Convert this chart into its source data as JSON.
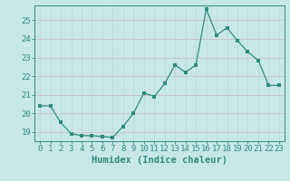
{
  "x": [
    0,
    1,
    2,
    3,
    4,
    5,
    6,
    7,
    8,
    9,
    10,
    11,
    12,
    13,
    14,
    15,
    16,
    17,
    18,
    19,
    20,
    21,
    22,
    23
  ],
  "y": [
    20.4,
    20.4,
    19.5,
    18.9,
    18.8,
    18.8,
    18.75,
    18.7,
    19.3,
    20.0,
    21.1,
    20.9,
    21.6,
    22.6,
    22.2,
    22.6,
    25.6,
    24.2,
    24.6,
    23.9,
    23.3,
    22.85,
    21.5,
    21.5
  ],
  "line_color": "#2e8b7a",
  "marker_color": "#2e8b7a",
  "bg_color": "#c8e8e8",
  "grid_color_v": "#b8d4d4",
  "grid_color_h": "#ccb8b8",
  "xlabel": "Humidex (Indice chaleur)",
  "xlim": [
    -0.5,
    23.5
  ],
  "ylim": [
    18.5,
    25.8
  ],
  "yticks": [
    19,
    20,
    21,
    22,
    23,
    24,
    25
  ],
  "xticks": [
    0,
    1,
    2,
    3,
    4,
    5,
    6,
    7,
    8,
    9,
    10,
    11,
    12,
    13,
    14,
    15,
    16,
    17,
    18,
    19,
    20,
    21,
    22,
    23
  ],
  "tick_color": "#2e8b7a",
  "axis_color": "#2e8b7a",
  "xlabel_fontsize": 7.5,
  "tick_fontsize": 6.5
}
